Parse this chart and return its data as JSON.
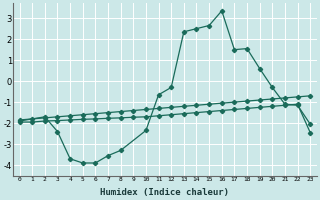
{
  "xlabel": "Humidex (Indice chaleur)",
  "bg_color": "#cce8e8",
  "grid_color": "#ffffff",
  "line_color": "#1a6b5a",
  "xlim": [
    -0.5,
    23.5
  ],
  "ylim": [
    -4.5,
    3.7
  ],
  "xticks": [
    0,
    1,
    2,
    3,
    4,
    5,
    6,
    7,
    8,
    9,
    10,
    11,
    12,
    13,
    14,
    15,
    16,
    17,
    18,
    19,
    20,
    21,
    22,
    23
  ],
  "yticks": [
    -4,
    -3,
    -2,
    -1,
    0,
    1,
    2,
    3
  ],
  "curve_main_x": [
    0,
    2,
    3,
    4,
    5,
    6,
    7,
    8,
    10,
    11,
    12,
    13,
    14,
    15,
    16,
    17,
    18,
    19,
    20,
    21,
    22,
    23
  ],
  "curve_main_y": [
    -1.9,
    -1.7,
    -2.4,
    -3.7,
    -3.9,
    -3.9,
    -3.55,
    -3.3,
    -2.35,
    -0.65,
    -0.3,
    2.35,
    2.5,
    2.65,
    3.35,
    1.5,
    1.55,
    0.6,
    -0.3,
    -1.1,
    -1.15,
    -2.05
  ],
  "curve_upper_x": [
    0,
    1,
    2,
    3,
    4,
    5,
    6,
    7,
    8,
    9,
    10,
    11,
    12,
    13,
    14,
    15,
    16,
    17,
    18,
    19,
    20,
    21,
    22,
    23
  ],
  "curve_upper_y": [
    -1.85,
    -1.8,
    -1.75,
    -1.7,
    -1.65,
    -1.6,
    -1.55,
    -1.5,
    -1.45,
    -1.4,
    -1.35,
    -1.3,
    -1.25,
    -1.2,
    -1.15,
    -1.1,
    -1.05,
    -1.0,
    -0.95,
    -0.9,
    -0.85,
    -0.8,
    -0.75,
    -0.7
  ],
  "curve_lower_x": [
    0,
    1,
    2,
    3,
    4,
    5,
    6,
    7,
    8,
    9,
    10,
    11,
    12,
    13,
    14,
    15,
    16,
    17,
    18,
    19,
    20,
    21,
    22,
    23
  ],
  "curve_lower_y": [
    -1.95,
    -1.95,
    -1.9,
    -1.88,
    -1.85,
    -1.82,
    -1.8,
    -1.77,
    -1.75,
    -1.72,
    -1.7,
    -1.65,
    -1.6,
    -1.55,
    -1.5,
    -1.45,
    -1.4,
    -1.35,
    -1.3,
    -1.25,
    -1.2,
    -1.15,
    -1.1,
    -2.45
  ]
}
